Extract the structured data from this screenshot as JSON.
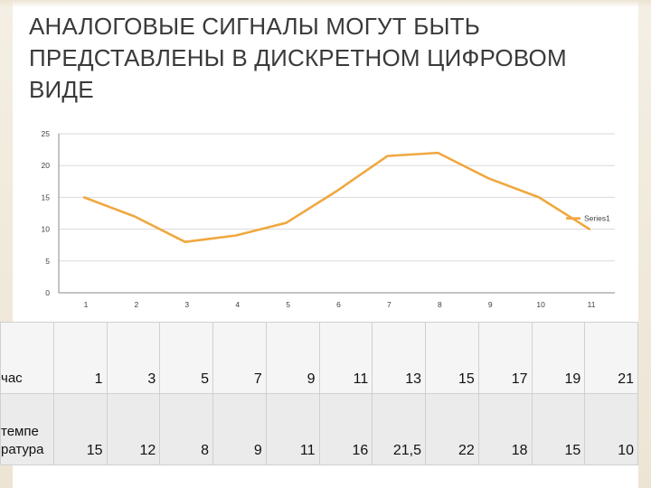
{
  "title": "АНАЛОГОВЫЕ СИГНАЛЫ МОГУТ БЫТЬ ПРЕДСТАВЛЕНЫ  В ДИСКРЕТНОМ ЦИФРОВОМ ВИДЕ",
  "chart_data": {
    "type": "line",
    "categories": [
      "1",
      "2",
      "3",
      "4",
      "5",
      "6",
      "7",
      "8",
      "9",
      "10",
      "11"
    ],
    "series": [
      {
        "name": "Series1",
        "values": [
          15,
          12,
          8,
          9,
          11,
          16,
          21.5,
          22,
          18,
          15,
          10
        ],
        "color": "#f0a840"
      }
    ],
    "yticks": [
      "0",
      "5",
      "10",
      "15",
      "20",
      "25"
    ],
    "ylim": [
      0,
      25
    ],
    "grid": true,
    "legend": "right"
  },
  "table": {
    "rows": [
      {
        "label": "час",
        "values": [
          "1",
          "3",
          "5",
          "7",
          "9",
          "11",
          "13",
          "15",
          "17",
          "19",
          "21"
        ]
      },
      {
        "label": "темпе ратура",
        "values": [
          "15",
          "12",
          "8",
          "9",
          "11",
          "16",
          "21,5",
          "22",
          "18",
          "15",
          "10"
        ]
      }
    ]
  },
  "colors": {
    "line": "#f0a840",
    "grid": "#d9d9d9",
    "axis": "#888888"
  }
}
